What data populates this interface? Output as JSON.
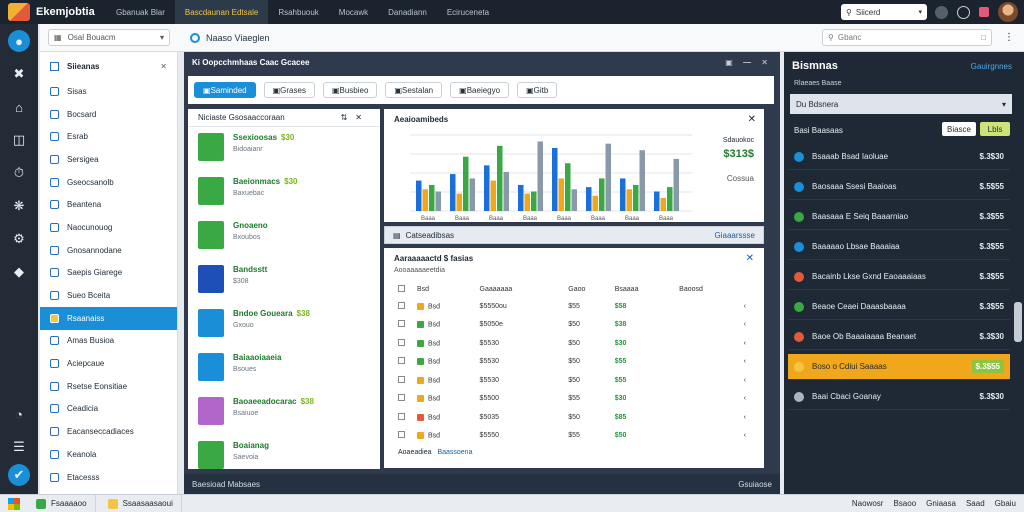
{
  "app": {
    "title": "Ekemjobtia"
  },
  "tabs": [
    {
      "label": "Gbanuak Blar",
      "active": false
    },
    {
      "label": "Bascdaunan Edtsale",
      "active": true
    },
    {
      "label": "Rsahbuouk",
      "active": false
    },
    {
      "label": "Mocawk",
      "active": false
    },
    {
      "label": "Danadiann",
      "active": false
    },
    {
      "label": "Eciruceneta",
      "active": false
    }
  ],
  "top_search": {
    "value": "Siicerd"
  },
  "filter": {
    "value": "Osal Bouacm"
  },
  "breadcrumb": {
    "label": "Naaso Viaeglen"
  },
  "sub_search": {
    "placeholder": "Gbanc"
  },
  "sidebar": {
    "title": "Siieanas",
    "items": [
      {
        "label": "Sisas"
      },
      {
        "label": "Bocsard"
      },
      {
        "label": "Esrab"
      },
      {
        "label": "Sersigea"
      },
      {
        "label": "Gseocsanolb"
      },
      {
        "label": "Beantena"
      },
      {
        "label": "Naocunouog"
      },
      {
        "label": "Gnosannodane"
      },
      {
        "label": "Saepis Giarege"
      },
      {
        "label": "Sueo Bceita"
      },
      {
        "label": "Rsaanaiss",
        "active": true
      },
      {
        "label": "Amas Busioa"
      },
      {
        "label": "Aciepcaue"
      },
      {
        "label": "Rsetse Eonsitiae"
      },
      {
        "label": "Ceadicia"
      },
      {
        "label": "Eacanseccadiaces"
      },
      {
        "label": "Keanola"
      },
      {
        "label": "Etacesss"
      }
    ]
  },
  "main": {
    "title": "Ki Oopcchmhaas Caac Gcacee",
    "toolbar": [
      "Saminded",
      "Grases",
      "Busbieo",
      "Sestalan",
      "Baeiegyo",
      "Gitb"
    ],
    "list": {
      "header": "Niciaste Gsosaaccoraan",
      "items": [
        {
          "name": "Ssexioosas",
          "amount": "$30",
          "sub": "Bidoaianr",
          "color": "#3aa843"
        },
        {
          "name": "Baeionmacs",
          "amount": "$30",
          "sub": "Baxuebac",
          "color": "#3aa843"
        },
        {
          "name": "Gnoaeno",
          "amount": "",
          "sub": "Bxoubos",
          "color": "#3aa843"
        },
        {
          "name": "Bandsstt",
          "amount": "",
          "sub": "$308",
          "color": "#1e4fb8"
        },
        {
          "name": "Bndoe Goueara",
          "amount": "$38",
          "sub": "Gxouo",
          "color": "#1a8fd8"
        },
        {
          "name": "Baiaaoiaaeia",
          "amount": "",
          "sub": "Bsoues",
          "color": "#1a8fd8"
        },
        {
          "name": "Baoaeeadocarac",
          "amount": "$38",
          "sub": "Bsaiuoe",
          "color": "#b366c9"
        },
        {
          "name": "Boaianag",
          "amount": "",
          "sub": "Saevoia",
          "color": "#3aa843"
        }
      ]
    },
    "chart": {
      "title": "Aeaioamibeds",
      "side_label": "Sdauokoc",
      "side_value": "$313$",
      "side_code": "Cossua"
    },
    "strip": {
      "left": "Catseadibsas",
      "right": "Giaaarssse"
    },
    "table": {
      "title": "Aaraaaaactd $ fasias",
      "subtitle": "Aooaaaaaeetdia",
      "columns": [
        "Bsd",
        "Gaaaaaaa",
        "Gaoo",
        "Bsaaaa",
        "Baoosd",
        ""
      ],
      "rows": [
        {
          "tag": "#f1a71c",
          "c1": "Bsd",
          "c2": "$5550ou",
          "c3": "$55",
          "c4": "$58",
          "c5": ""
        },
        {
          "tag": "#3aa843",
          "c1": "Bsd",
          "c2": "$5050e",
          "c3": "$50",
          "c4": "$38",
          "c5": ""
        },
        {
          "tag": "#3aa843",
          "c1": "Bsd",
          "c2": "$5530",
          "c3": "$50",
          "c4": "$30",
          "c5": ""
        },
        {
          "tag": "#3aa843",
          "c1": "Bsd",
          "c2": "$5530",
          "c3": "$50",
          "c4": "$55",
          "c5": ""
        },
        {
          "tag": "#f1a71c",
          "c1": "Bsd",
          "c2": "$5530",
          "c3": "$50",
          "c4": "$55",
          "c5": ""
        },
        {
          "tag": "#f1a71c",
          "c1": "Bsd",
          "c2": "$5500",
          "c3": "$55",
          "c4": "$30",
          "c5": ""
        },
        {
          "tag": "#e15a3a",
          "c1": "Bsd",
          "c2": "$5035",
          "c3": "$50",
          "c4": "$85",
          "c5": ""
        },
        {
          "tag": "#f1a71c",
          "c1": "Bsd",
          "c2": "$5550",
          "c3": "$55",
          "c4": "$50",
          "c5": ""
        }
      ],
      "footer_label": "Aoaeadiea",
      "footer_link": "Baassoena"
    },
    "footer": {
      "left": "Baesioad Mabsaes",
      "right": "Gsuiaose"
    }
  },
  "right": {
    "title": "Bismnas",
    "top_link": "Gauirgnnes",
    "label": "Rlaeaes Baase",
    "select": "Du Bdsnera",
    "section": "Basi Baasaas",
    "btn1": "Biasce",
    "btn2": "Lbls",
    "rows": [
      {
        "name": "Bsaaab Bsad Iaoluae",
        "value": "$.3$30",
        "dot": "#1a8fd8"
      },
      {
        "name": "Baosaaa Ssesi Baaioas",
        "value": "$.5$55",
        "dot": "#1a8fd8"
      },
      {
        "name": "Baasaaa E Seiq Baaarniao",
        "value": "$.3$55",
        "dot": "#3aa843"
      },
      {
        "name": "Baaaaao Lbsae Baaaiaa",
        "value": "$.3$55",
        "dot": "#1a8fd8"
      },
      {
        "name": "Bacainb Lkse Gxnd Eaoaaaiaas",
        "value": "$.3$55",
        "dot": "#e15a3a"
      },
      {
        "name": "Beaoe Ceaei Daaasbaaaa",
        "value": "$.3$55",
        "dot": "#3aa843"
      },
      {
        "name": "Baoe Ob Baaaiaaaa Beanaet",
        "value": "$.3$30",
        "dot": "#e15a3a"
      },
      {
        "name": "Boso o Cdiui Saaaas",
        "value": "$.3$55",
        "dot": "#f4c542",
        "highlight": true
      },
      {
        "name": "Baai Cbaci Goanay",
        "value": "$.3$30",
        "dot": "#aab4bf"
      }
    ]
  },
  "taskbar": {
    "items": [
      {
        "label": "Fsaaaaoo",
        "color": "#3aa843"
      },
      {
        "label": "Ssaasaasaoui",
        "color": "#f4c542"
      }
    ],
    "tray": [
      "Naowosr",
      "Bsaoo",
      "Gniaasa",
      "Saad",
      "Gbaiu"
    ]
  },
  "chart_data": {
    "type": "bar",
    "title": "Aeaioamibeds",
    "groups": [
      {
        "label": "Baaa",
        "values": [
          28,
          20,
          24,
          18
        ]
      },
      {
        "label": "Baaa",
        "values": [
          34,
          16,
          50,
          30
        ]
      },
      {
        "label": "Baaa",
        "values": [
          42,
          28,
          60,
          36
        ]
      },
      {
        "label": "Baaa",
        "values": [
          24,
          16,
          18,
          64
        ]
      },
      {
        "label": "Baaa",
        "values": [
          58,
          30,
          44,
          20
        ]
      },
      {
        "label": "Baaa",
        "values": [
          22,
          14,
          30,
          62
        ]
      },
      {
        "label": "Baaa",
        "values": [
          30,
          20,
          24,
          56
        ]
      },
      {
        "label": "Baaa",
        "values": [
          18,
          12,
          22,
          48
        ]
      }
    ],
    "colors": [
      "#1a6fd8",
      "#f1a71c",
      "#3aa843",
      "#8899aa"
    ],
    "ylim": [
      0,
      70
    ]
  }
}
